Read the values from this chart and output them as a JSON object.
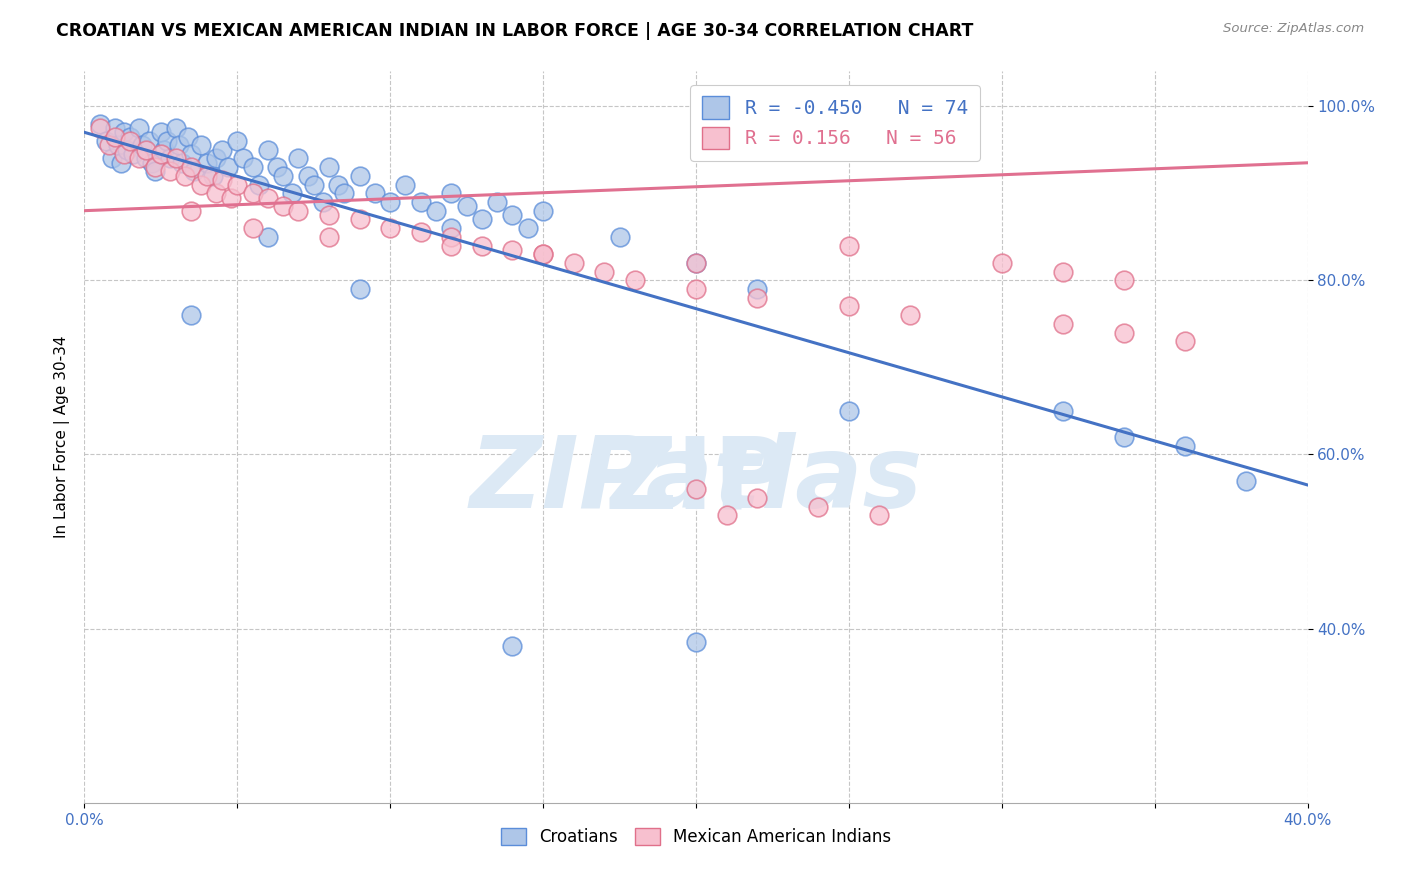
{
  "title": "CROATIAN VS MEXICAN AMERICAN INDIAN IN LABOR FORCE | AGE 30-34 CORRELATION CHART",
  "source": "Source: ZipAtlas.com",
  "ylabel": "In Labor Force | Age 30-34",
  "xlim": [
    0.0,
    0.4
  ],
  "ylim": [
    0.2,
    1.04
  ],
  "yticks": [
    0.4,
    0.6,
    0.8,
    1.0
  ],
  "ytick_labels": [
    "40.0%",
    "60.0%",
    "80.0%",
    "100.0%"
  ],
  "xtick_labels": [
    "0.0%",
    "",
    "",
    "",
    "",
    "",
    "",
    "",
    "40.0%"
  ],
  "legend_R_blue": "-0.450",
  "legend_N_blue": "74",
  "legend_R_pink": " 0.156",
  "legend_N_pink": "56",
  "blue_fill": "#aec6e8",
  "blue_edge": "#5b8dd9",
  "pink_fill": "#f7c0cf",
  "pink_edge": "#e0708a",
  "blue_line": "#4472c4",
  "pink_line": "#e07090",
  "blue_scatter_x": [
    0.005,
    0.007,
    0.009,
    0.01,
    0.011,
    0.012,
    0.013,
    0.014,
    0.015,
    0.016,
    0.018,
    0.019,
    0.02,
    0.021,
    0.022,
    0.023,
    0.025,
    0.026,
    0.027,
    0.028,
    0.03,
    0.031,
    0.032,
    0.034,
    0.035,
    0.036,
    0.038,
    0.04,
    0.042,
    0.043,
    0.045,
    0.047,
    0.05,
    0.052,
    0.055,
    0.057,
    0.06,
    0.063,
    0.065,
    0.068,
    0.07,
    0.073,
    0.075,
    0.078,
    0.08,
    0.083,
    0.085,
    0.09,
    0.095,
    0.1,
    0.105,
    0.11,
    0.115,
    0.12,
    0.125,
    0.13,
    0.135,
    0.14,
    0.145,
    0.15,
    0.035,
    0.06,
    0.09,
    0.12,
    0.175,
    0.2,
    0.22,
    0.25,
    0.32,
    0.34,
    0.36,
    0.38,
    0.14,
    0.2
  ],
  "blue_scatter_y": [
    0.98,
    0.96,
    0.94,
    0.975,
    0.955,
    0.935,
    0.97,
    0.95,
    0.965,
    0.945,
    0.975,
    0.955,
    0.94,
    0.96,
    0.935,
    0.925,
    0.97,
    0.95,
    0.96,
    0.94,
    0.975,
    0.955,
    0.935,
    0.965,
    0.945,
    0.925,
    0.955,
    0.935,
    0.92,
    0.94,
    0.95,
    0.93,
    0.96,
    0.94,
    0.93,
    0.91,
    0.95,
    0.93,
    0.92,
    0.9,
    0.94,
    0.92,
    0.91,
    0.89,
    0.93,
    0.91,
    0.9,
    0.92,
    0.9,
    0.89,
    0.91,
    0.89,
    0.88,
    0.9,
    0.885,
    0.87,
    0.89,
    0.875,
    0.86,
    0.88,
    0.76,
    0.85,
    0.79,
    0.86,
    0.85,
    0.82,
    0.79,
    0.65,
    0.65,
    0.62,
    0.61,
    0.57,
    0.38,
    0.385
  ],
  "pink_scatter_x": [
    0.005,
    0.008,
    0.01,
    0.013,
    0.015,
    0.018,
    0.02,
    0.023,
    0.025,
    0.028,
    0.03,
    0.033,
    0.035,
    0.038,
    0.04,
    0.043,
    0.045,
    0.048,
    0.05,
    0.055,
    0.06,
    0.065,
    0.07,
    0.08,
    0.09,
    0.1,
    0.11,
    0.12,
    0.13,
    0.14,
    0.15,
    0.16,
    0.17,
    0.18,
    0.2,
    0.22,
    0.25,
    0.27,
    0.32,
    0.34,
    0.36,
    0.035,
    0.055,
    0.08,
    0.12,
    0.15,
    0.2,
    0.25,
    0.3,
    0.32,
    0.34,
    0.2,
    0.22,
    0.24,
    0.26,
    0.21
  ],
  "pink_scatter_y": [
    0.975,
    0.955,
    0.965,
    0.945,
    0.96,
    0.94,
    0.95,
    0.93,
    0.945,
    0.925,
    0.94,
    0.92,
    0.93,
    0.91,
    0.92,
    0.9,
    0.915,
    0.895,
    0.91,
    0.9,
    0.895,
    0.885,
    0.88,
    0.875,
    0.87,
    0.86,
    0.855,
    0.85,
    0.84,
    0.835,
    0.83,
    0.82,
    0.81,
    0.8,
    0.79,
    0.78,
    0.77,
    0.76,
    0.75,
    0.74,
    0.73,
    0.88,
    0.86,
    0.85,
    0.84,
    0.83,
    0.82,
    0.84,
    0.82,
    0.81,
    0.8,
    0.56,
    0.55,
    0.54,
    0.53,
    0.53
  ],
  "blue_trendline_x": [
    0.0,
    0.4
  ],
  "blue_trendline_y": [
    0.97,
    0.565
  ],
  "pink_trendline_x": [
    0.0,
    0.4
  ],
  "pink_trendline_y": [
    0.88,
    0.935
  ]
}
